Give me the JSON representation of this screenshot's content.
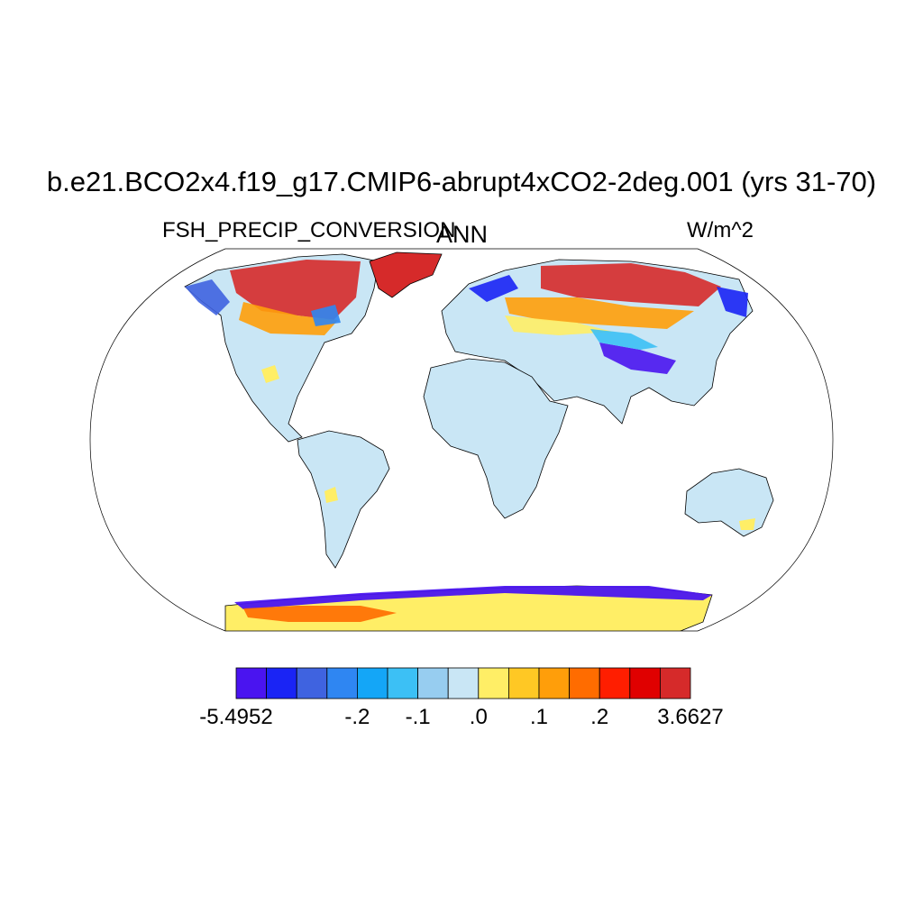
{
  "title": "b.e21.BCO2x4.f19_g17.CMIP6-abrupt4xCO2-2deg.001 (yrs 31-70)",
  "left_string": "FSH_PRECIP_CONVERSION",
  "center_string": "ANN",
  "right_string": "W/m^2",
  "colors": {
    "land_default": "#c9e6f5",
    "coastline": "#000000",
    "map_border": "#000000"
  },
  "colorbar": {
    "fill_colors": [
      "#4a14f0",
      "#1a24f5",
      "#3f63e0",
      "#2f86f2",
      "#14a6f7",
      "#3cc0f5",
      "#97cdf0",
      "#c9e6f5",
      "#ffee66",
      "#ffc824",
      "#ff9e0a",
      "#ff6c00",
      "#ff1e00",
      "#e00000",
      "#d62a2a"
    ],
    "labels": [
      {
        "text": "-5.4952",
        "boundary": 0
      },
      {
        "text": "-.2",
        "boundary": 4
      },
      {
        "text": "-.1",
        "boundary": 6
      },
      {
        "text": ".0",
        "boundary": 8
      },
      {
        "text": ".1",
        "boundary": 10
      },
      {
        "text": ".2",
        "boundary": 12
      },
      {
        "text": "3.6627",
        "boundary": 15
      }
    ]
  }
}
